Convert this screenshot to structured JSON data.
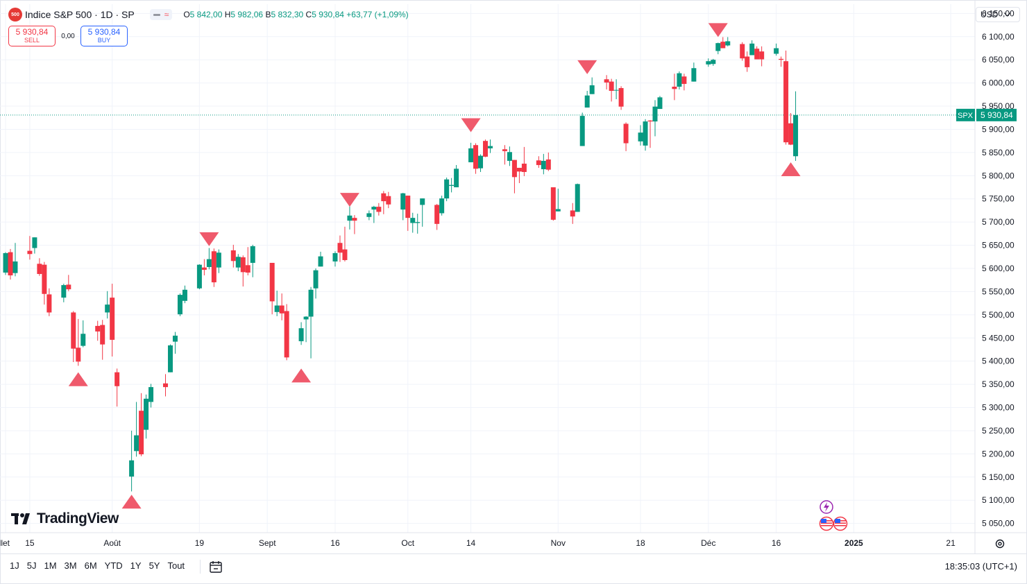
{
  "header": {
    "symbol_badge": "500",
    "title": "Indice S&P 500 · 1D · SP",
    "ohlc": {
      "open_label": "O",
      "open": "5 842,00",
      "high_label": "H",
      "high": "5 982,06",
      "low_label": "B",
      "low": "5 832,30",
      "close_label": "C",
      "close": "5 930,84",
      "change": "+63,77 (+1,09%)"
    },
    "currency": "USD",
    "sell_price": "5 930,84",
    "sell_label": "SELL",
    "spread": "0,00",
    "buy_price": "5 930,84",
    "buy_label": "BUY"
  },
  "brand": "TradingView",
  "bottom_bar": {
    "ranges": [
      "1J",
      "5J",
      "1M",
      "3M",
      "6M",
      "YTD",
      "1Y",
      "5Y",
      "Tout"
    ],
    "clock": "18:35:03 (UTC+1)"
  },
  "colors": {
    "up": "#089981",
    "down": "#f23645",
    "marker": "#ef5a6c",
    "grid": "#f0f3fa",
    "text": "#131722"
  },
  "icons": [
    "calendar-icon",
    "gear-icon",
    "lightning-icon",
    "us-flag-icon"
  ],
  "chart_data": {
    "type": "candlestick",
    "symbol": "SPX",
    "last_price": 5930.84,
    "last_price_label": "5 930,84",
    "y_axis": {
      "ylim": [
        5030,
        6170
      ],
      "ticks": [
        5050,
        5100,
        5150,
        5200,
        5250,
        5300,
        5350,
        5400,
        5450,
        5500,
        5550,
        5600,
        5650,
        5700,
        5750,
        5800,
        5850,
        5900,
        5950,
        6000,
        6050,
        6100,
        6150
      ],
      "tick_labels": [
        "5 050,00",
        "5 100,00",
        "5 150,00",
        "5 200,00",
        "5 250,00",
        "5 300,00",
        "5 350,00",
        "5 400,00",
        "5 450,00",
        "5 500,00",
        "5 550,00",
        "5 600,00",
        "5 650,00",
        "5 700,00",
        "5 750,00",
        "5 800,00",
        "5 850,00",
        "5 900,00",
        "5 950,00",
        "6 000,00",
        "6 050,00",
        "6 100,00",
        "6 150,00"
      ]
    },
    "x_axis": {
      "range": [
        "2024-07-10",
        "2025-01-26"
      ],
      "ticks": [
        {
          "date": "2024-07-10",
          "label": "illet"
        },
        {
          "date": "2024-07-15",
          "label": "15"
        },
        {
          "date": "2024-08-01",
          "label": "Août"
        },
        {
          "date": "2024-08-19",
          "label": "19"
        },
        {
          "date": "2024-09-02",
          "label": "Sept"
        },
        {
          "date": "2024-09-16",
          "label": "16"
        },
        {
          "date": "2024-10-01",
          "label": "Oct"
        },
        {
          "date": "2024-10-14",
          "label": "14"
        },
        {
          "date": "2024-11-01",
          "label": "Nov"
        },
        {
          "date": "2024-11-18",
          "label": "18"
        },
        {
          "date": "2024-12-02",
          "label": "Déc"
        },
        {
          "date": "2024-12-16",
          "label": "16"
        },
        {
          "date": "2025-01-01",
          "label": "2025"
        },
        {
          "date": "2025-01-21",
          "label": "21"
        }
      ]
    },
    "candles": [
      {
        "d": "2024-07-10",
        "o": 5591,
        "h": 5635,
        "l": 5586,
        "c": 5633
      },
      {
        "d": "2024-07-11",
        "o": 5635,
        "h": 5642,
        "l": 5576,
        "c": 5585
      },
      {
        "d": "2024-07-12",
        "o": 5590,
        "h": 5655,
        "l": 5583,
        "c": 5615
      },
      {
        "d": "2024-07-15",
        "o": 5638,
        "h": 5670,
        "l": 5619,
        "c": 5631
      },
      {
        "d": "2024-07-16",
        "o": 5644,
        "h": 5667,
        "l": 5632,
        "c": 5667
      },
      {
        "d": "2024-07-17",
        "o": 5610,
        "h": 5622,
        "l": 5584,
        "c": 5588
      },
      {
        "d": "2024-07-18",
        "o": 5608,
        "h": 5614,
        "l": 5522,
        "c": 5545
      },
      {
        "d": "2024-07-19",
        "o": 5544,
        "h": 5557,
        "l": 5497,
        "c": 5505
      },
      {
        "d": "2024-07-22",
        "o": 5537,
        "h": 5567,
        "l": 5527,
        "c": 5564
      },
      {
        "d": "2024-07-23",
        "o": 5565,
        "h": 5586,
        "l": 5551,
        "c": 5555
      },
      {
        "d": "2024-07-24",
        "o": 5505,
        "h": 5508,
        "l": 5398,
        "c": 5427
      },
      {
        "d": "2024-07-25",
        "o": 5429,
        "h": 5491,
        "l": 5390,
        "c": 5399
      },
      {
        "d": "2024-07-26",
        "o": 5433,
        "h": 5488,
        "l": 5430,
        "c": 5459
      },
      {
        "d": "2024-07-29",
        "o": 5476,
        "h": 5487,
        "l": 5444,
        "c": 5464
      },
      {
        "d": "2024-07-30",
        "o": 5478,
        "h": 5489,
        "l": 5403,
        "c": 5436
      },
      {
        "d": "2024-07-31",
        "o": 5505,
        "h": 5551,
        "l": 5492,
        "c": 5522
      },
      {
        "d": "2024-08-01",
        "o": 5537,
        "h": 5567,
        "l": 5410,
        "c": 5446
      },
      {
        "d": "2024-08-02",
        "o": 5376,
        "h": 5384,
        "l": 5302,
        "c": 5346
      },
      {
        "d": "2024-08-05",
        "o": 5151,
        "h": 5250,
        "l": 5119,
        "c": 5186
      },
      {
        "d": "2024-08-06",
        "o": 5206,
        "h": 5312,
        "l": 5194,
        "c": 5240
      },
      {
        "d": "2024-08-07",
        "o": 5293,
        "h": 5331,
        "l": 5195,
        "c": 5199
      },
      {
        "d": "2024-08-08",
        "o": 5252,
        "h": 5328,
        "l": 5233,
        "c": 5319
      },
      {
        "d": "2024-08-09",
        "o": 5312,
        "h": 5351,
        "l": 5300,
        "c": 5344
      },
      {
        "d": "2024-08-12",
        "o": 5352,
        "h": 5372,
        "l": 5324,
        "c": 5344
      },
      {
        "d": "2024-08-13",
        "o": 5376,
        "h": 5436,
        "l": 5376,
        "c": 5434
      },
      {
        "d": "2024-08-14",
        "o": 5442,
        "h": 5463,
        "l": 5416,
        "c": 5455
      },
      {
        "d": "2024-08-15",
        "o": 5501,
        "h": 5546,
        "l": 5497,
        "c": 5543
      },
      {
        "d": "2024-08-16",
        "o": 5530,
        "h": 5563,
        "l": 5525,
        "c": 5554
      },
      {
        "d": "2024-08-19",
        "o": 5557,
        "h": 5609,
        "l": 5555,
        "c": 5608
      },
      {
        "d": "2024-08-20",
        "o": 5602,
        "h": 5620,
        "l": 5585,
        "c": 5597
      },
      {
        "d": "2024-08-21",
        "o": 5603,
        "h": 5644,
        "l": 5598,
        "c": 5620
      },
      {
        "d": "2024-08-22",
        "o": 5637,
        "h": 5643,
        "l": 5560,
        "c": 5570
      },
      {
        "d": "2024-08-23",
        "o": 5602,
        "h": 5641,
        "l": 5590,
        "c": 5634
      },
      {
        "d": "2024-08-26",
        "o": 5639,
        "h": 5651,
        "l": 5602,
        "c": 5616
      },
      {
        "d": "2024-08-27",
        "o": 5602,
        "h": 5631,
        "l": 5594,
        "c": 5625
      },
      {
        "d": "2024-08-28",
        "o": 5624,
        "h": 5628,
        "l": 5561,
        "c": 5592
      },
      {
        "d": "2024-08-29",
        "o": 5607,
        "h": 5646,
        "l": 5585,
        "c": 5591
      },
      {
        "d": "2024-08-30",
        "o": 5612,
        "h": 5651,
        "l": 5581,
        "c": 5648
      },
      {
        "d": "2024-09-03",
        "o": 5612,
        "h": 5612,
        "l": 5501,
        "c": 5529
      },
      {
        "d": "2024-09-04",
        "o": 5506,
        "h": 5552,
        "l": 5497,
        "c": 5520
      },
      {
        "d": "2024-09-05",
        "o": 5520,
        "h": 5546,
        "l": 5488,
        "c": 5503
      },
      {
        "d": "2024-09-06",
        "o": 5508,
        "h": 5523,
        "l": 5402,
        "c": 5408
      },
      {
        "d": "2024-09-09",
        "o": 5443,
        "h": 5484,
        "l": 5435,
        "c": 5471
      },
      {
        "d": "2024-09-10",
        "o": 5490,
        "h": 5497,
        "l": 5441,
        "c": 5496
      },
      {
        "d": "2024-09-11",
        "o": 5496,
        "h": 5560,
        "l": 5406,
        "c": 5554
      },
      {
        "d": "2024-09-12",
        "o": 5557,
        "h": 5600,
        "l": 5535,
        "c": 5596
      },
      {
        "d": "2024-09-13",
        "o": 5604,
        "h": 5636,
        "l": 5604,
        "c": 5626
      },
      {
        "d": "2024-09-16",
        "o": 5615,
        "h": 5637,
        "l": 5604,
        "c": 5633
      },
      {
        "d": "2024-09-17",
        "o": 5655,
        "h": 5671,
        "l": 5614,
        "c": 5634
      },
      {
        "d": "2024-09-18",
        "o": 5641,
        "h": 5690,
        "l": 5615,
        "c": 5618
      },
      {
        "d": "2024-09-19",
        "o": 5703,
        "h": 5734,
        "l": 5684,
        "c": 5714
      },
      {
        "d": "2024-09-20",
        "o": 5709,
        "h": 5715,
        "l": 5674,
        "c": 5703
      },
      {
        "d": "2024-09-23",
        "o": 5711,
        "h": 5725,
        "l": 5704,
        "c": 5719
      },
      {
        "d": "2024-09-24",
        "o": 5727,
        "h": 5735,
        "l": 5698,
        "c": 5733
      },
      {
        "d": "2024-09-25",
        "o": 5733,
        "h": 5741,
        "l": 5714,
        "c": 5722
      },
      {
        "d": "2024-09-26",
        "o": 5762,
        "h": 5767,
        "l": 5717,
        "c": 5745
      },
      {
        "d": "2024-09-27",
        "o": 5756,
        "h": 5765,
        "l": 5730,
        "c": 5738
      },
      {
        "d": "2024-09-30",
        "o": 5727,
        "h": 5763,
        "l": 5704,
        "c": 5762
      },
      {
        "d": "2024-10-01",
        "o": 5757,
        "h": 5757,
        "l": 5681,
        "c": 5709
      },
      {
        "d": "2024-10-02",
        "o": 5698,
        "h": 5720,
        "l": 5677,
        "c": 5709
      },
      {
        "d": "2024-10-03",
        "o": 5698,
        "h": 5718,
        "l": 5675,
        "c": 5700
      },
      {
        "d": "2024-10-04",
        "o": 5737,
        "h": 5751,
        "l": 5690,
        "c": 5751
      },
      {
        "d": "2024-10-07",
        "o": 5737,
        "h": 5739,
        "l": 5683,
        "c": 5696
      },
      {
        "d": "2024-10-08",
        "o": 5719,
        "h": 5757,
        "l": 5714,
        "c": 5751
      },
      {
        "d": "2024-10-09",
        "o": 5751,
        "h": 5796,
        "l": 5745,
        "c": 5792
      },
      {
        "d": "2024-10-10",
        "o": 5778,
        "h": 5795,
        "l": 5764,
        "c": 5780
      },
      {
        "d": "2024-10-11",
        "o": 5775,
        "h": 5823,
        "l": 5775,
        "c": 5815
      },
      {
        "d": "2024-10-14",
        "o": 5829,
        "h": 5871,
        "l": 5829,
        "c": 5859
      },
      {
        "d": "2024-10-15",
        "o": 5866,
        "h": 5870,
        "l": 5804,
        "c": 5815
      },
      {
        "d": "2024-10-16",
        "o": 5816,
        "h": 5846,
        "l": 5808,
        "c": 5843
      },
      {
        "d": "2024-10-17",
        "o": 5875,
        "h": 5878,
        "l": 5840,
        "c": 5841
      },
      {
        "d": "2024-10-18",
        "o": 5859,
        "h": 5878,
        "l": 5849,
        "c": 5864
      },
      {
        "d": "2024-10-21",
        "o": 5857,
        "h": 5866,
        "l": 5824,
        "c": 5853
      },
      {
        "d": "2024-10-22",
        "o": 5832,
        "h": 5863,
        "l": 5821,
        "c": 5851
      },
      {
        "d": "2024-10-23",
        "o": 5834,
        "h": 5834,
        "l": 5762,
        "c": 5797
      },
      {
        "d": "2024-10-24",
        "o": 5817,
        "h": 5817,
        "l": 5784,
        "c": 5809
      },
      {
        "d": "2024-10-25",
        "o": 5826,
        "h": 5862,
        "l": 5799,
        "c": 5808
      },
      {
        "d": "2024-10-28",
        "o": 5833,
        "h": 5842,
        "l": 5817,
        "c": 5823
      },
      {
        "d": "2024-10-29",
        "o": 5814,
        "h": 5847,
        "l": 5803,
        "c": 5832
      },
      {
        "d": "2024-10-30",
        "o": 5835,
        "h": 5850,
        "l": 5810,
        "c": 5813
      },
      {
        "d": "2024-10-31",
        "o": 5775,
        "h": 5775,
        "l": 5703,
        "c": 5705
      },
      {
        "d": "2024-11-01",
        "o": 5723,
        "h": 5772,
        "l": 5723,
        "c": 5728
      },
      {
        "d": "2024-11-04",
        "o": 5725,
        "h": 5741,
        "l": 5696,
        "c": 5712
      },
      {
        "d": "2024-11-05",
        "o": 5722,
        "h": 5783,
        "l": 5722,
        "c": 5782
      },
      {
        "d": "2024-11-06",
        "o": 5864,
        "h": 5936,
        "l": 5864,
        "c": 5929
      },
      {
        "d": "2024-11-07",
        "o": 5947,
        "h": 5983,
        "l": 5947,
        "c": 5973
      },
      {
        "d": "2024-11-08",
        "o": 5976,
        "h": 6012,
        "l": 5976,
        "c": 5995
      },
      {
        "d": "2024-11-11",
        "o": 6008,
        "h": 6017,
        "l": 5986,
        "c": 6001
      },
      {
        "d": "2024-11-12",
        "o": 6003,
        "h": 6009,
        "l": 5960,
        "c": 5983
      },
      {
        "d": "2024-11-13",
        "o": 5985,
        "h": 6008,
        "l": 5965,
        "c": 5985
      },
      {
        "d": "2024-11-14",
        "o": 5989,
        "h": 5993,
        "l": 5942,
        "c": 5949
      },
      {
        "d": "2024-11-15",
        "o": 5912,
        "h": 5915,
        "l": 5853,
        "c": 5870
      },
      {
        "d": "2024-11-18",
        "o": 5874,
        "h": 5909,
        "l": 5865,
        "c": 5893
      },
      {
        "d": "2024-11-19",
        "o": 5865,
        "h": 5922,
        "l": 5854,
        "c": 5917
      },
      {
        "d": "2024-11-20",
        "o": 5919,
        "h": 5920,
        "l": 5860,
        "c": 5917
      },
      {
        "d": "2024-11-21",
        "o": 5917,
        "h": 5963,
        "l": 5885,
        "c": 5949
      },
      {
        "d": "2024-11-22",
        "o": 5944,
        "h": 5972,
        "l": 5944,
        "c": 5969
      },
      {
        "d": "2024-11-25",
        "o": 5992,
        "h": 6020,
        "l": 5963,
        "c": 5987
      },
      {
        "d": "2024-11-26",
        "o": 5992,
        "h": 6025,
        "l": 5986,
        "c": 6021
      },
      {
        "d": "2024-11-27",
        "o": 6014,
        "h": 6020,
        "l": 5984,
        "c": 5998
      },
      {
        "d": "2024-11-29",
        "o": 6003,
        "h": 6044,
        "l": 6003,
        "c": 6032
      },
      {
        "d": "2024-12-02",
        "o": 6040,
        "h": 6053,
        "l": 6035,
        "c": 6047
      },
      {
        "d": "2024-12-03",
        "o": 6041,
        "h": 6052,
        "l": 6037,
        "c": 6050
      },
      {
        "d": "2024-12-04",
        "o": 6069,
        "h": 6087,
        "l": 6062,
        "c": 6086
      },
      {
        "d": "2024-12-05",
        "o": 6089,
        "h": 6099,
        "l": 6075,
        "c": 6075
      },
      {
        "d": "2024-12-06",
        "o": 6081,
        "h": 6099,
        "l": 6079,
        "c": 6090
      },
      {
        "d": "2024-12-09",
        "o": 6084,
        "h": 6088,
        "l": 6048,
        "c": 6053
      },
      {
        "d": "2024-12-10",
        "o": 6057,
        "h": 6068,
        "l": 6024,
        "c": 6034
      },
      {
        "d": "2024-12-11",
        "o": 6060,
        "h": 6092,
        "l": 6060,
        "c": 6085
      },
      {
        "d": "2024-12-12",
        "o": 6074,
        "h": 6079,
        "l": 6051,
        "c": 6051
      },
      {
        "d": "2024-12-13",
        "o": 6068,
        "h": 6079,
        "l": 6036,
        "c": 6051
      },
      {
        "d": "2024-12-16",
        "o": 6063,
        "h": 6085,
        "l": 6059,
        "c": 6075
      },
      {
        "d": "2024-12-17",
        "o": 6052,
        "h": 6057,
        "l": 6035,
        "c": 6050
      },
      {
        "d": "2024-12-18",
        "o": 6047,
        "h": 6070,
        "l": 5867,
        "c": 5872
      },
      {
        "d": "2024-12-19",
        "o": 5913,
        "h": 5935,
        "l": 5866,
        "c": 5867
      },
      {
        "d": "2024-12-20",
        "o": 5842,
        "h": 5982,
        "l": 5832,
        "c": 5931
      }
    ],
    "markers": [
      {
        "d": "2024-07-25",
        "dir": "up",
        "price": 5361
      },
      {
        "d": "2024-08-05",
        "dir": "up",
        "price": 5097
      },
      {
        "d": "2024-08-21",
        "dir": "down",
        "price": 5663
      },
      {
        "d": "2024-09-09",
        "dir": "up",
        "price": 5369
      },
      {
        "d": "2024-09-19",
        "dir": "down",
        "price": 5748
      },
      {
        "d": "2024-10-14",
        "dir": "down",
        "price": 5909
      },
      {
        "d": "2024-11-07",
        "dir": "down",
        "price": 6034
      },
      {
        "d": "2024-12-04",
        "dir": "down",
        "price": 6114
      },
      {
        "d": "2024-12-19",
        "dir": "up",
        "price": 5814
      }
    ],
    "events": [
      {
        "d": "2024-12-20",
        "type": "lightning"
      },
      {
        "d": "2024-12-20",
        "type": "us-flag"
      },
      {
        "d": "2024-12-22",
        "type": "us-flag"
      }
    ]
  }
}
